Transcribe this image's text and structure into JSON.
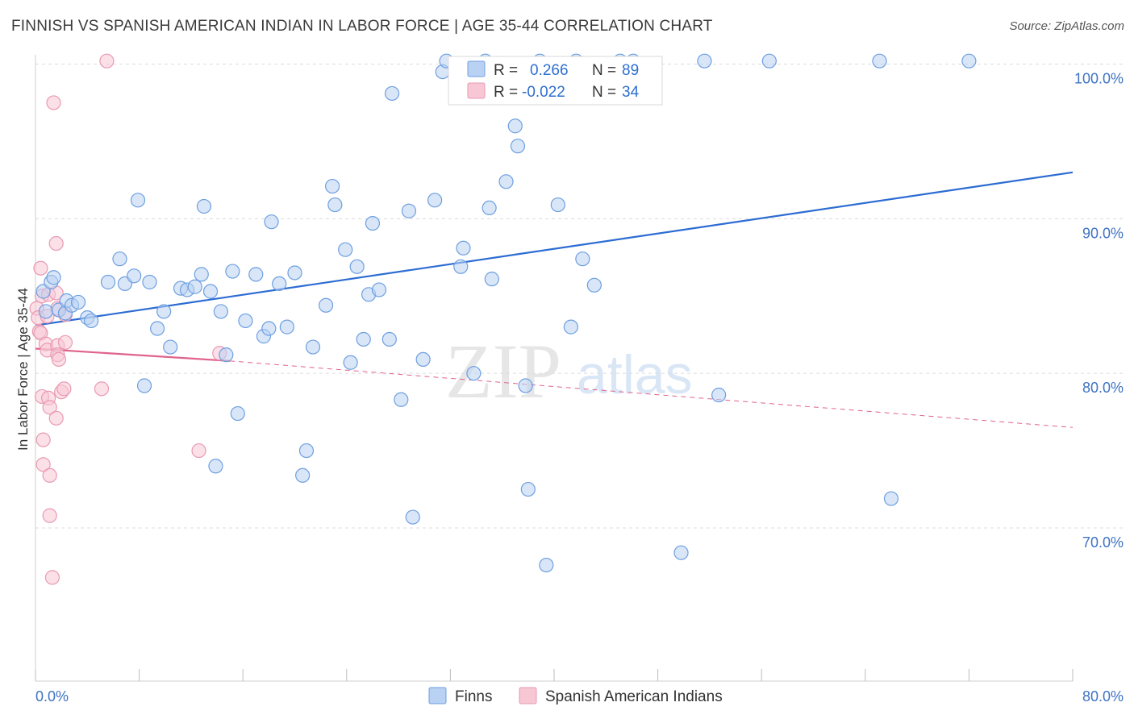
{
  "title": "FINNISH VS SPANISH AMERICAN INDIAN IN LABOR FORCE | AGE 35-44 CORRELATION CHART",
  "source": "Source: ZipAtlas.com",
  "watermark": {
    "zip": "ZIP",
    "atlas": "atlas"
  },
  "colors": {
    "finns": "#6e9fe0",
    "finns_fill": "#b9d1f3",
    "finns_line": "#2c6cd3",
    "spanish": "#e99ab3",
    "spanish_fill": "#f7c7d6",
    "spanish_line": "#e0638d",
    "tick": "#3f73c4",
    "grid": "#dcdcdc"
  },
  "legend": {
    "r_label": "R =",
    "n_label": "N =",
    "finns": {
      "r": "0.266",
      "n": "89"
    },
    "spanish": {
      "r": "-0.022",
      "n": "34"
    }
  },
  "chart_data": {
    "type": "scatter",
    "title": "FINNISH VS SPANISH AMERICAN INDIAN IN LABOR FORCE | AGE 35-44 CORRELATION CHART",
    "xlabel": "",
    "ylabel": "In Labor Force | Age 35-44",
    "xlim": [
      0,
      80
    ],
    "ylim": [
      60,
      103
    ],
    "x_tick_labels": [
      "0.0%",
      "80.0%"
    ],
    "y_ticks": [
      70,
      80,
      90,
      100
    ],
    "y_tick_labels": [
      "70.0%",
      "80.0%",
      "90.0%",
      "100.0%"
    ],
    "grid": true,
    "legend_position": "top-center",
    "series": [
      {
        "name": "Finns",
        "points": [
          [
            0.6,
            85.3
          ],
          [
            0.8,
            84.0
          ],
          [
            1.2,
            85.9
          ],
          [
            1.4,
            86.2
          ],
          [
            1.8,
            84.1
          ],
          [
            2.3,
            83.9
          ],
          [
            2.4,
            84.7
          ],
          [
            2.8,
            84.4
          ],
          [
            3.3,
            84.6
          ],
          [
            4.0,
            83.6
          ],
          [
            4.3,
            83.4
          ],
          [
            5.6,
            85.9
          ],
          [
            6.5,
            87.4
          ],
          [
            6.9,
            85.8
          ],
          [
            7.6,
            86.3
          ],
          [
            7.9,
            91.2
          ],
          [
            8.4,
            79.2
          ],
          [
            8.8,
            85.9
          ],
          [
            9.4,
            82.9
          ],
          [
            9.9,
            84.0
          ],
          [
            10.4,
            81.7
          ],
          [
            11.2,
            85.5
          ],
          [
            11.7,
            85.4
          ],
          [
            12.3,
            85.6
          ],
          [
            12.8,
            86.4
          ],
          [
            13.0,
            90.8
          ],
          [
            13.5,
            85.3
          ],
          [
            13.9,
            74.0
          ],
          [
            14.3,
            84.0
          ],
          [
            14.7,
            81.2
          ],
          [
            15.2,
            86.6
          ],
          [
            15.6,
            77.4
          ],
          [
            16.2,
            83.4
          ],
          [
            17.0,
            86.4
          ],
          [
            17.6,
            82.4
          ],
          [
            18.0,
            82.9
          ],
          [
            18.2,
            89.8
          ],
          [
            18.8,
            85.8
          ],
          [
            19.4,
            83.0
          ],
          [
            20.0,
            86.5
          ],
          [
            20.6,
            73.4
          ],
          [
            20.9,
            75.0
          ],
          [
            21.4,
            81.7
          ],
          [
            22.4,
            84.4
          ],
          [
            22.9,
            92.1
          ],
          [
            23.1,
            90.9
          ],
          [
            23.9,
            88.0
          ],
          [
            24.3,
            80.7
          ],
          [
            24.8,
            86.9
          ],
          [
            25.3,
            82.2
          ],
          [
            25.7,
            85.1
          ],
          [
            26.0,
            89.7
          ],
          [
            26.5,
            85.4
          ],
          [
            27.3,
            82.2
          ],
          [
            27.5,
            98.1
          ],
          [
            28.2,
            78.3
          ],
          [
            28.8,
            90.5
          ],
          [
            29.1,
            70.7
          ],
          [
            29.9,
            80.9
          ],
          [
            30.8,
            91.2
          ],
          [
            31.4,
            99.5
          ],
          [
            31.7,
            100.2
          ],
          [
            32.8,
            86.9
          ],
          [
            33.0,
            88.1
          ],
          [
            33.8,
            80.0
          ],
          [
            34.7,
            100.2
          ],
          [
            35.0,
            90.7
          ],
          [
            35.2,
            86.1
          ],
          [
            36.3,
            92.4
          ],
          [
            37.0,
            96.0
          ],
          [
            37.2,
            94.7
          ],
          [
            37.8,
            79.2
          ],
          [
            38.0,
            72.5
          ],
          [
            38.9,
            100.2
          ],
          [
            39.4,
            67.6
          ],
          [
            40.3,
            90.9
          ],
          [
            41.3,
            83.0
          ],
          [
            41.7,
            100.2
          ],
          [
            42.2,
            87.4
          ],
          [
            43.1,
            85.7
          ],
          [
            45.1,
            100.2
          ],
          [
            46.1,
            100.2
          ],
          [
            49.8,
            68.4
          ],
          [
            51.6,
            100.2
          ],
          [
            52.7,
            78.6
          ],
          [
            56.6,
            100.2
          ],
          [
            65.1,
            100.2
          ],
          [
            66.0,
            71.9
          ],
          [
            72.0,
            100.2
          ]
        ],
        "trendline": {
          "x": [
            0,
            80
          ],
          "y": [
            83.1,
            93.0
          ]
        }
      },
      {
        "name": "Spanish American Indians",
        "points": [
          [
            0.1,
            84.2
          ],
          [
            0.2,
            83.6
          ],
          [
            0.3,
            82.7
          ],
          [
            0.4,
            86.8
          ],
          [
            0.4,
            82.6
          ],
          [
            0.5,
            78.5
          ],
          [
            0.5,
            85.0
          ],
          [
            0.6,
            75.7
          ],
          [
            0.6,
            74.1
          ],
          [
            0.8,
            81.9
          ],
          [
            0.9,
            81.5
          ],
          [
            0.9,
            83.7
          ],
          [
            1.0,
            78.4
          ],
          [
            1.0,
            85.1
          ],
          [
            1.1,
            77.8
          ],
          [
            1.1,
            73.4
          ],
          [
            1.1,
            70.8
          ],
          [
            1.3,
            66.8
          ],
          [
            1.4,
            97.5
          ],
          [
            1.6,
            88.4
          ],
          [
            1.6,
            85.2
          ],
          [
            1.6,
            77.1
          ],
          [
            1.7,
            84.2
          ],
          [
            1.7,
            81.8
          ],
          [
            1.7,
            81.2
          ],
          [
            1.8,
            80.9
          ],
          [
            2.0,
            78.8
          ],
          [
            2.2,
            79.0
          ],
          [
            2.3,
            82.0
          ],
          [
            2.3,
            83.8
          ],
          [
            5.1,
            79.0
          ],
          [
            5.5,
            100.2
          ],
          [
            12.6,
            75.0
          ],
          [
            14.2,
            81.3
          ]
        ],
        "trendline": {
          "x": [
            0,
            15
          ],
          "y": [
            81.6,
            80.8
          ],
          "dashed_extension": {
            "x": [
              15,
              80
            ],
            "y": [
              80.8,
              76.5
            ]
          }
        }
      }
    ]
  },
  "bottom_legend": [
    {
      "label": "Finns"
    },
    {
      "label": "Spanish American Indians"
    }
  ]
}
